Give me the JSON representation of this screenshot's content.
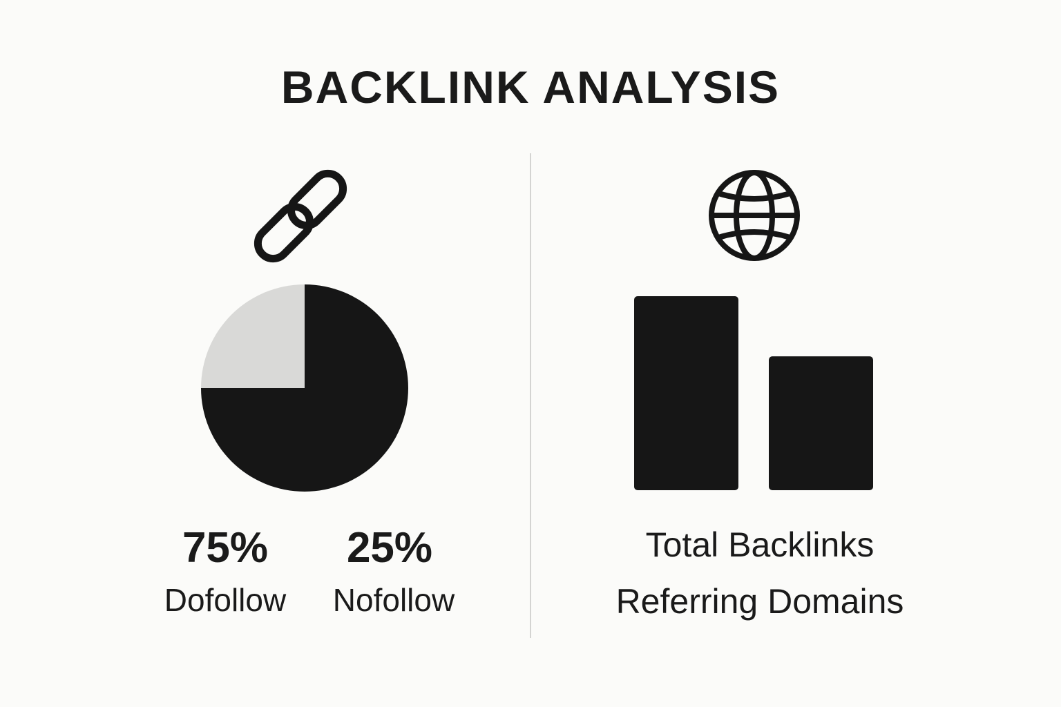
{
  "title": "BACKLINK ANALYSIS",
  "colors": {
    "background": "#fbfbf9",
    "dark": "#161616",
    "light": "#d9d9d7",
    "divider": "#d4d4d2"
  },
  "icons": {
    "left": "link-icon",
    "right": "globe-icon"
  },
  "chart_data": [
    {
      "type": "pie",
      "slices": [
        {
          "name": "Dofollow",
          "value": 75,
          "label": "75%",
          "color": "#161616"
        },
        {
          "name": "Nofollow",
          "value": 25,
          "label": "25%",
          "color": "#d9d9d7"
        }
      ]
    },
    {
      "type": "bar",
      "categories": [
        "Total Backlinks",
        "Referring Domains"
      ],
      "values": [
        100,
        69
      ],
      "color": "#161616"
    }
  ]
}
